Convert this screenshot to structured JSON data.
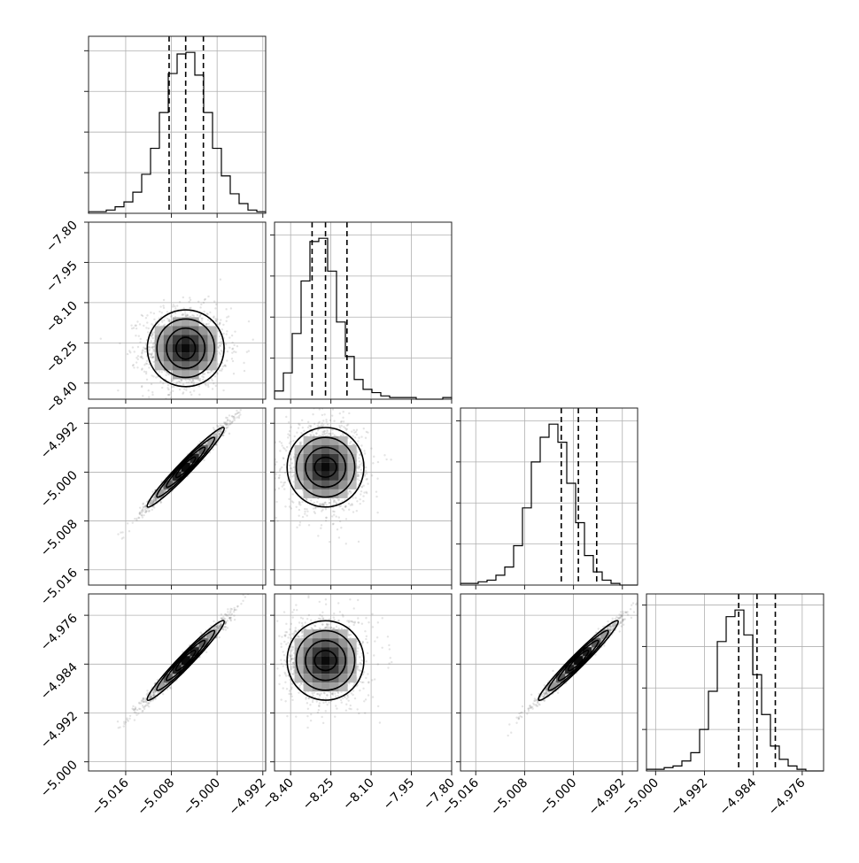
{
  "chart_data": {
    "type": "scatter",
    "subtype": "corner",
    "grid": true,
    "colors": {
      "line": "#000000",
      "samples": "#6a6a6a",
      "grid": "#b0b0b0"
    },
    "parameters": [
      {
        "index": 0,
        "median": -5.0055,
        "q16": -5.0084,
        "q84": -5.0024,
        "range": [
          -5.0225,
          -4.9915
        ],
        "ticks": [
          -5.016,
          -5.008,
          -5.0,
          -4.992
        ],
        "tick_labels": [
          "−5.016",
          "−5.008",
          "−5.000",
          "−4.992"
        ]
      },
      {
        "index": 1,
        "median": -8.27,
        "q16": -8.32,
        "q84": -8.19,
        "range": [
          -8.46,
          -7.8
        ],
        "ticks": [
          -8.4,
          -8.25,
          -8.1,
          -7.95,
          -7.8
        ],
        "tick_labels": [
          "−8.40",
          "−8.25",
          "−8.10",
          "−7.95",
          "−7.80"
        ]
      },
      {
        "index": 2,
        "median": -4.9992,
        "q16": -5.002,
        "q84": -4.9962,
        "range": [
          -5.0185,
          -4.9895
        ],
        "ticks": [
          -5.016,
          -5.008,
          -5.0,
          -4.992
        ],
        "tick_labels": [
          "−5.016",
          "−5.008",
          "−5.000",
          "−4.992"
        ]
      },
      {
        "index": 3,
        "median": -4.9834,
        "q16": -4.9864,
        "q84": -4.9804,
        "range": [
          -5.0015,
          -4.9725
        ],
        "ticks": [
          -5.0,
          -4.992,
          -4.984,
          -4.976
        ],
        "tick_labels": [
          "−5.000",
          "−4.992",
          "−4.984",
          "−4.976"
        ]
      }
    ],
    "histograms": [
      {
        "param": 0,
        "counts": [
          1,
          1,
          2,
          4,
          7,
          13,
          24,
          40,
          62,
          86,
          98,
          99,
          85,
          62,
          40,
          23,
          12,
          6,
          2,
          1
        ]
      },
      {
        "param": 1,
        "counts": [
          5,
          16,
          40,
          72,
          96,
          98,
          78,
          47,
          26,
          12,
          6,
          4,
          2,
          1,
          1,
          1,
          0,
          0,
          0,
          1
        ]
      },
      {
        "param": 2,
        "counts": [
          1,
          1,
          2,
          3,
          6,
          11,
          24,
          47,
          75,
          90,
          98,
          87,
          62,
          38,
          18,
          8,
          3,
          1,
          0,
          0
        ]
      },
      {
        "param": 3,
        "counts": [
          1,
          1,
          2,
          3,
          6,
          11,
          25,
          48,
          78,
          93,
          97,
          82,
          58,
          34,
          15,
          7,
          3,
          1,
          0,
          0
        ]
      }
    ],
    "pairs": [
      {
        "x": 0,
        "y": 1,
        "center": [
          -5.0055,
          -8.27
        ],
        "sd": [
          0.0032,
          0.065
        ],
        "rho": 0.0
      },
      {
        "x": 0,
        "y": 2,
        "center": [
          -5.0055,
          -4.9992
        ],
        "sd": [
          0.0032,
          0.0031
        ],
        "rho": 0.985
      },
      {
        "x": 1,
        "y": 2,
        "center": [
          -8.27,
          -4.9992
        ],
        "sd": [
          0.065,
          0.0031
        ],
        "rho": 0.0
      },
      {
        "x": 0,
        "y": 3,
        "center": [
          -5.0055,
          -4.9834
        ],
        "sd": [
          0.0032,
          0.0031
        ],
        "rho": 0.985
      },
      {
        "x": 1,
        "y": 3,
        "center": [
          -8.27,
          -4.9834
        ],
        "sd": [
          0.065,
          0.0031
        ],
        "rho": 0.0
      },
      {
        "x": 2,
        "y": 3,
        "center": [
          -4.9992,
          -4.9834
        ],
        "sd": [
          0.0031,
          0.0031
        ],
        "rho": 0.985
      }
    ],
    "contour_levels_sigma": [
      0.5,
      1.0,
      1.5,
      2.0
    ]
  }
}
